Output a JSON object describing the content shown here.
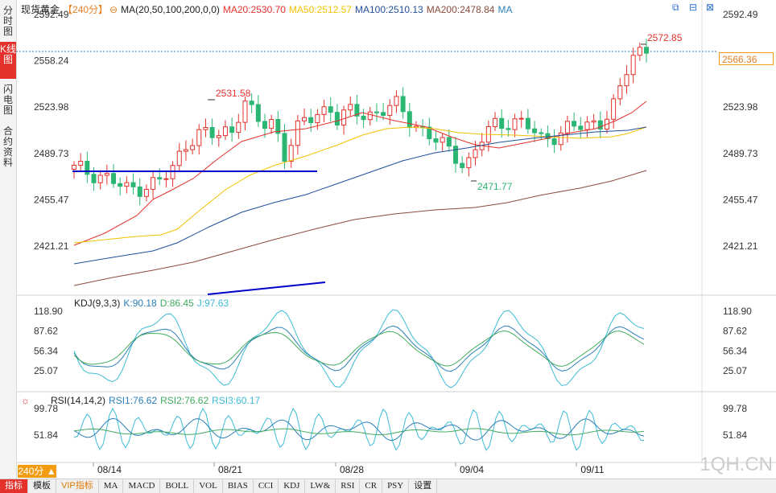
{
  "sidebar": {
    "tabs": [
      {
        "label": "分时图",
        "active": false
      },
      {
        "label": "K线图",
        "active": true
      },
      {
        "label": "闪电图",
        "active": false
      },
      {
        "label": "合约资料",
        "active": false
      }
    ]
  },
  "header": {
    "instrument": "现货黄金",
    "period": "【240分】",
    "ma_params": "MA(20,50,100,200,0,0)",
    "ma20": "MA20:2530.70",
    "ma50": "MA50:2512.57",
    "ma100": "MA100:2510.13",
    "ma200": "MA200:2478.84",
    "ma_label": "MA"
  },
  "colors": {
    "up": "#e4312c",
    "down": "#2bb673",
    "ma20": "#e4312c",
    "ma50": "#f2c200",
    "ma100": "#1f4e9c",
    "ma200": "#8b4a3a",
    "kdj_k": "#2c7fb8",
    "kdj_d": "#41ab5d",
    "kdj_j": "#3cbcd6",
    "trendline": "#0000cc",
    "last_price": "#2b7fb8"
  },
  "price_axis": {
    "ticks": [
      "2592.49",
      "2558.24",
      "2523.98",
      "2489.73",
      "2455.47",
      "2421.21"
    ],
    "last_price": "2566.36"
  },
  "annotations": {
    "high_label": "2572.85",
    "mid_high_label": "2531.58",
    "low_label": "2471.77"
  },
  "kdj": {
    "title": "KDJ(9,3,3)",
    "k": "K:90.18",
    "d": "D:86.45",
    "j": "J:97.63",
    "ticks": [
      "118.90",
      "87.62",
      "56.34",
      "25.07"
    ]
  },
  "rsi": {
    "title": "RSI(14,14,2)",
    "rsi1": "RSI1:76.62",
    "rsi2": "RSI2:76.62",
    "rsi3": "RSI3:60.17",
    "ticks": [
      "99.78",
      "51.84"
    ]
  },
  "x_axis": {
    "dates": [
      "08/14",
      "08/21",
      "08/28",
      "09/04",
      "09/11"
    ]
  },
  "period_tab": "240分 ▲",
  "watermark": "1QH.CN",
  "toolbar": {
    "items": [
      "指标",
      "模板",
      "VIP指标",
      "MA",
      "MACD",
      "BOLL",
      "VOL",
      "BIAS",
      "CCI",
      "KDJ",
      "LW&",
      "RSI",
      "CR",
      "PSY",
      "设置"
    ]
  },
  "window_icons": [
    "restore-icon",
    "minimize-icon",
    "close-icon"
  ]
}
